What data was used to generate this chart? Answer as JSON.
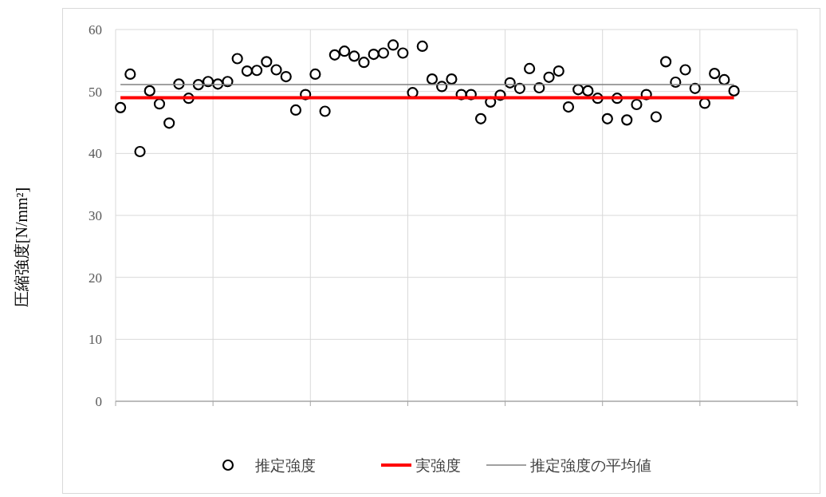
{
  "chart_data": {
    "type": "scatter",
    "ylabel": "圧縮強度[N/mm²]",
    "categories": [
      null,
      null,
      null,
      null,
      null,
      null,
      null,
      null,
      null,
      null,
      null,
      null,
      null,
      null,
      null,
      null,
      null,
      null,
      null,
      null,
      null,
      null,
      null,
      null,
      null,
      null,
      null,
      null,
      null,
      null,
      null,
      null,
      null,
      null,
      null,
      null,
      null,
      null,
      null,
      null,
      null,
      null,
      null,
      null,
      null,
      null,
      null,
      null,
      null,
      null,
      null,
      null,
      null,
      null,
      null,
      null,
      null,
      null,
      null,
      null,
      null,
      null,
      null,
      null,
      null,
      null,
      null,
      null,
      null,
      null
    ],
    "ylim": [
      0,
      60
    ],
    "yticks": [
      0,
      10,
      20,
      30,
      40,
      50,
      60
    ],
    "grid": true,
    "legend": "bottom",
    "series": [
      {
        "name": "推定強度",
        "marker": "circle",
        "color": "#000000",
        "values": [
          47.4,
          52.8,
          40.3,
          50.1,
          48.0,
          44.9,
          51.2,
          48.9,
          51.1,
          51.6,
          51.2,
          51.6,
          55.3,
          53.3,
          53.4,
          54.8,
          53.5,
          52.4,
          47.0,
          49.5,
          52.8,
          46.8,
          55.9,
          56.5,
          55.7,
          54.7,
          56.0,
          56.2,
          57.5,
          56.2,
          49.8,
          57.3,
          52.0,
          50.8,
          52.0,
          49.5,
          49.5,
          45.6,
          48.3,
          49.4,
          51.4,
          50.5,
          53.7,
          50.6,
          52.3,
          53.3,
          47.5,
          50.3,
          50.1,
          48.9,
          45.6,
          48.9,
          45.4,
          47.9,
          49.5,
          45.9,
          54.8,
          51.5,
          53.5,
          50.5,
          48.1,
          52.9,
          51.9,
          50.1,
          null,
          null,
          null,
          null,
          null,
          null
        ]
      },
      {
        "name": "実強度",
        "type": "line",
        "color": "#ff0000",
        "values": [
          49,
          49,
          49,
          49,
          49,
          49,
          49,
          49,
          49,
          49,
          49,
          49,
          49,
          49,
          49,
          49,
          49,
          49,
          49,
          49,
          49,
          49,
          49,
          49,
          49,
          49,
          49,
          49,
          49,
          49,
          49,
          49,
          49,
          49,
          49,
          49,
          49,
          49,
          49,
          49,
          49,
          49,
          49,
          49,
          49,
          49,
          49,
          49,
          49,
          49,
          49,
          49,
          49,
          49,
          49,
          49,
          49,
          49,
          49,
          49,
          49,
          49,
          49,
          49,
          null,
          null,
          null,
          null,
          null,
          null
        ]
      },
      {
        "name": "推定強度の平均値",
        "type": "line",
        "color": "#808080",
        "values": [
          51.1,
          51.1,
          51.1,
          51.1,
          51.1,
          51.1,
          51.1,
          51.1,
          51.1,
          51.1,
          51.1,
          51.1,
          51.1,
          51.1,
          51.1,
          51.1,
          51.1,
          51.1,
          51.1,
          51.1,
          51.1,
          51.1,
          51.1,
          51.1,
          51.1,
          51.1,
          51.1,
          51.1,
          51.1,
          51.1,
          51.1,
          51.1,
          51.1,
          51.1,
          51.1,
          51.1,
          51.1,
          51.1,
          51.1,
          51.1,
          51.1,
          51.1,
          51.1,
          51.1,
          51.1,
          51.1,
          51.1,
          51.1,
          51.1,
          51.1,
          51.1,
          51.1,
          51.1,
          51.1,
          51.1,
          51.1,
          51.1,
          51.1,
          51.1,
          51.1,
          51.1,
          51.1,
          51.1,
          51.1,
          null,
          null,
          null,
          null,
          null,
          null
        ]
      }
    ]
  }
}
